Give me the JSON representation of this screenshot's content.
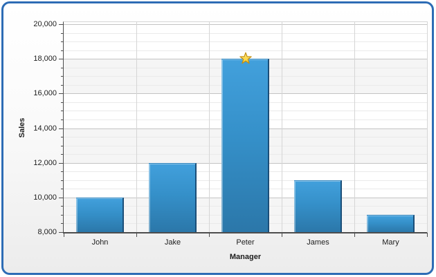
{
  "frame": {
    "border_color": "#2d6cb5"
  },
  "chart_data": {
    "type": "bar",
    "categories": [
      "John",
      "Jake",
      "Peter",
      "James",
      "Mary"
    ],
    "values": [
      10000,
      12000,
      18000,
      11000,
      9000
    ],
    "xlabel": "Manager",
    "ylabel": "Sales",
    "ylim": [
      8000,
      20000
    ],
    "y_major_step": 2000,
    "y_minor_step": 500,
    "y_tick_labels": [
      "8,000",
      "10,000",
      "12,000",
      "14,000",
      "16,000",
      "18,000",
      "20,000"
    ],
    "grid": true,
    "legend_position": "none",
    "band_colors": [
      "#ffffff",
      "#f5f5f5"
    ],
    "major_grid_color": "#c3c3c3",
    "minor_grid_color": "#eaeaea",
    "bar_fill_top": "#42a0dc",
    "bar_fill_bottom": "#2b77a9",
    "bar_border_color": "#1b4e78",
    "annotations": [
      {
        "type": "star-marker",
        "category": "Peter",
        "value": 18000,
        "fill": "#f9ce2d",
        "fill_light": "#ffe97d",
        "stroke": "#c18e12"
      }
    ]
  }
}
